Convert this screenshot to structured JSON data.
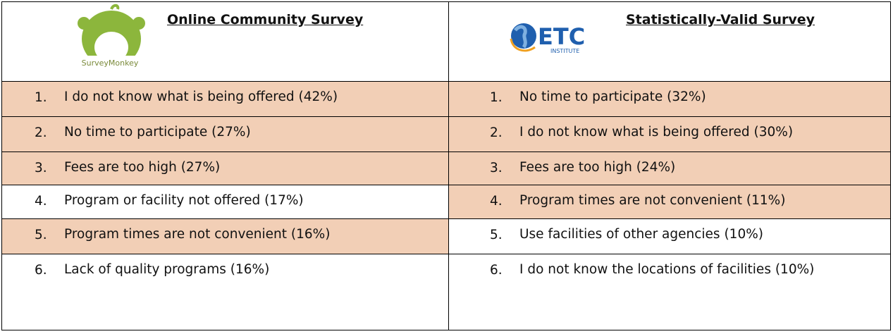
{
  "columns": [
    {
      "logo": {
        "text": "SurveyMonkey"
      },
      "title": "Online Community Survey",
      "items": [
        {
          "number": "1.",
          "text": "I do not know what is being offered (42%)",
          "highlighted": true
        },
        {
          "number": "2.",
          "text": "No time to participate (27%)",
          "highlighted": true
        },
        {
          "number": "3.",
          "text": "Fees are too high (27%)",
          "highlighted": true
        },
        {
          "number": "4.",
          "text": "Program or facility not offered (17%)",
          "highlighted": false
        },
        {
          "number": "5.",
          "text": "Program times are not convenient (16%)",
          "highlighted": true
        },
        {
          "number": "6.",
          "text": "Lack of quality programs (16%)",
          "highlighted": false
        }
      ]
    },
    {
      "logo": {
        "text": "ETC",
        "subtext": "INSTITUTE"
      },
      "title": "Statistically-Valid Survey",
      "items": [
        {
          "number": "1.",
          "text": "No time to participate (32%)",
          "highlighted": true
        },
        {
          "number": "2.",
          "text": "I do not know what is being offered (30%)",
          "highlighted": true
        },
        {
          "number": "3.",
          "text": "Fees are too high (24%)",
          "highlighted": true
        },
        {
          "number": "4.",
          "text": "Program times are not convenient (11%)",
          "highlighted": true
        },
        {
          "number": "5.",
          "text": "Use facilities of other agencies (10%)",
          "highlighted": false
        },
        {
          "number": "6.",
          "text": "I do not know the locations of facilities (10%)",
          "highlighted": false
        }
      ]
    }
  ]
}
